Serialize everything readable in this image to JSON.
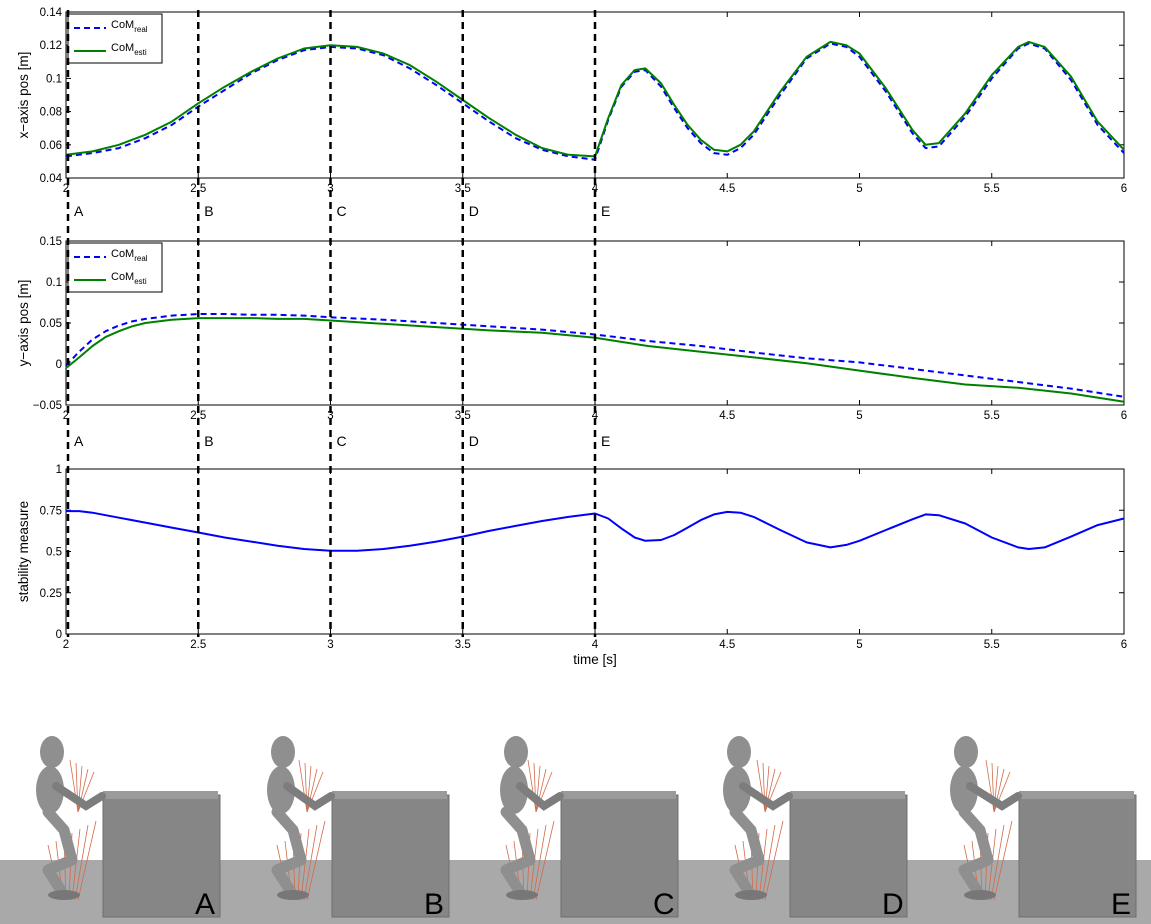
{
  "chart_data": [
    {
      "type": "line",
      "ylabel": "x−axis pos [m]",
      "xlabel": "",
      "xlim": [
        2,
        6
      ],
      "ylim": [
        0.04,
        0.14
      ],
      "xticks": [
        "2",
        "2.5",
        "3",
        "3.5",
        "4",
        "4.5",
        "5",
        "5.5",
        "6"
      ],
      "yticks": [
        "0.04",
        "0.06",
        "0.08",
        "0.1",
        "0.12",
        "0.14"
      ],
      "legend_position": "top-left",
      "series": [
        {
          "name": "CoM",
          "subscript": "real",
          "color": "#0000ff",
          "style": "dashed",
          "x": [
            2.0,
            2.1,
            2.2,
            2.3,
            2.4,
            2.5,
            2.6,
            2.7,
            2.8,
            2.9,
            3.0,
            3.1,
            3.2,
            3.3,
            3.4,
            3.5,
            3.6,
            3.7,
            3.8,
            3.9,
            4.0,
            4.05,
            4.1,
            4.15,
            4.19,
            4.25,
            4.3,
            4.35,
            4.4,
            4.45,
            4.5,
            4.55,
            4.6,
            4.7,
            4.8,
            4.89,
            4.95,
            5.0,
            5.1,
            5.2,
            5.25,
            5.3,
            5.4,
            5.5,
            5.6,
            5.64,
            5.7,
            5.8,
            5.9,
            6.0
          ],
          "y": [
            0.053,
            0.055,
            0.058,
            0.064,
            0.072,
            0.083,
            0.093,
            0.103,
            0.111,
            0.117,
            0.119,
            0.118,
            0.114,
            0.106,
            0.096,
            0.085,
            0.074,
            0.064,
            0.057,
            0.053,
            0.051,
            0.075,
            0.095,
            0.104,
            0.105,
            0.095,
            0.082,
            0.07,
            0.061,
            0.055,
            0.054,
            0.058,
            0.066,
            0.09,
            0.112,
            0.121,
            0.119,
            0.113,
            0.092,
            0.067,
            0.058,
            0.059,
            0.077,
            0.1,
            0.118,
            0.121,
            0.118,
            0.099,
            0.072,
            0.055
          ]
        },
        {
          "name": "CoM",
          "subscript": "esti",
          "color": "#008000",
          "style": "solid",
          "x": [
            2.0,
            2.1,
            2.2,
            2.3,
            2.4,
            2.5,
            2.6,
            2.7,
            2.8,
            2.9,
            3.0,
            3.1,
            3.2,
            3.3,
            3.4,
            3.5,
            3.6,
            3.7,
            3.8,
            3.9,
            4.0,
            4.05,
            4.1,
            4.15,
            4.19,
            4.25,
            4.3,
            4.35,
            4.4,
            4.45,
            4.5,
            4.55,
            4.6,
            4.7,
            4.8,
            4.89,
            4.95,
            5.0,
            5.1,
            5.2,
            5.25,
            5.3,
            5.4,
            5.5,
            5.6,
            5.64,
            5.7,
            5.8,
            5.9,
            6.0
          ],
          "y": [
            0.054,
            0.056,
            0.06,
            0.066,
            0.074,
            0.085,
            0.095,
            0.104,
            0.112,
            0.118,
            0.12,
            0.119,
            0.115,
            0.108,
            0.098,
            0.087,
            0.076,
            0.066,
            0.058,
            0.054,
            0.053,
            0.076,
            0.096,
            0.105,
            0.106,
            0.097,
            0.084,
            0.072,
            0.063,
            0.057,
            0.056,
            0.06,
            0.068,
            0.092,
            0.113,
            0.122,
            0.12,
            0.115,
            0.094,
            0.069,
            0.06,
            0.061,
            0.079,
            0.102,
            0.119,
            0.122,
            0.119,
            0.101,
            0.074,
            0.057
          ]
        }
      ]
    },
    {
      "type": "line",
      "ylabel": "y−axis pos [m]",
      "xlabel": "",
      "xlim": [
        2,
        6
      ],
      "ylim": [
        -0.05,
        0.15
      ],
      "xticks": [
        "2",
        "2.5",
        "3",
        "3.5",
        "4",
        "4.5",
        "5",
        "5.5",
        "6"
      ],
      "yticks": [
        "−0.05",
        "0",
        "0.05",
        "0.1",
        "0.15"
      ],
      "legend_position": "top-left",
      "series": [
        {
          "name": "CoM",
          "subscript": "real",
          "color": "#0000ff",
          "style": "dashed",
          "x": [
            2.0,
            2.05,
            2.1,
            2.15,
            2.2,
            2.25,
            2.3,
            2.4,
            2.5,
            2.6,
            2.7,
            2.8,
            2.9,
            3.0,
            3.2,
            3.4,
            3.6,
            3.8,
            4.0,
            4.2,
            4.4,
            4.6,
            4.8,
            5.0,
            5.2,
            5.4,
            5.6,
            5.8,
            6.0
          ],
          "y": [
            -0.002,
            0.015,
            0.03,
            0.04,
            0.047,
            0.052,
            0.055,
            0.059,
            0.061,
            0.061,
            0.06,
            0.06,
            0.059,
            0.057,
            0.054,
            0.05,
            0.046,
            0.042,
            0.036,
            0.028,
            0.022,
            0.014,
            0.007,
            0.002,
            -0.006,
            -0.014,
            -0.022,
            -0.03,
            -0.04
          ]
        },
        {
          "name": "CoM",
          "subscript": "esti",
          "color": "#008000",
          "style": "solid",
          "x": [
            2.0,
            2.05,
            2.1,
            2.15,
            2.2,
            2.25,
            2.3,
            2.4,
            2.5,
            2.6,
            2.7,
            2.8,
            2.9,
            3.0,
            3.2,
            3.4,
            3.6,
            3.8,
            4.0,
            4.2,
            4.4,
            4.6,
            4.8,
            5.0,
            5.2,
            5.4,
            5.6,
            5.8,
            6.0
          ],
          "y": [
            -0.005,
            0.008,
            0.022,
            0.033,
            0.04,
            0.046,
            0.05,
            0.054,
            0.056,
            0.056,
            0.056,
            0.055,
            0.055,
            0.053,
            0.049,
            0.045,
            0.041,
            0.038,
            0.032,
            0.022,
            0.015,
            0.008,
            0.001,
            -0.008,
            -0.017,
            -0.025,
            -0.029,
            -0.036,
            -0.046
          ]
        }
      ]
    },
    {
      "type": "line",
      "ylabel": "stability measure",
      "xlabel": "time [s]",
      "xlim": [
        2,
        6
      ],
      "ylim": [
        0,
        1
      ],
      "xticks": [
        "2",
        "2.5",
        "3",
        "3.5",
        "4",
        "4.5",
        "5",
        "5.5",
        "6"
      ],
      "yticks": [
        "0",
        "0.25",
        "0.5",
        "0.75",
        "1"
      ],
      "series": [
        {
          "name": "",
          "color": "#0000ff",
          "style": "solid",
          "x": [
            2.0,
            2.05,
            2.1,
            2.2,
            2.3,
            2.4,
            2.5,
            2.6,
            2.7,
            2.8,
            2.9,
            3.0,
            3.1,
            3.2,
            3.3,
            3.4,
            3.5,
            3.6,
            3.7,
            3.8,
            3.9,
            4.0,
            4.05,
            4.1,
            4.15,
            4.19,
            4.25,
            4.3,
            4.35,
            4.4,
            4.45,
            4.5,
            4.55,
            4.6,
            4.7,
            4.8,
            4.89,
            4.95,
            5.0,
            5.1,
            5.2,
            5.25,
            5.3,
            5.4,
            5.5,
            5.6,
            5.64,
            5.7,
            5.8,
            5.9,
            6.0
          ],
          "y": [
            0.745,
            0.745,
            0.735,
            0.705,
            0.675,
            0.645,
            0.615,
            0.585,
            0.56,
            0.535,
            0.515,
            0.505,
            0.505,
            0.515,
            0.535,
            0.56,
            0.59,
            0.625,
            0.655,
            0.685,
            0.71,
            0.73,
            0.7,
            0.64,
            0.585,
            0.565,
            0.57,
            0.6,
            0.645,
            0.69,
            0.725,
            0.74,
            0.735,
            0.71,
            0.63,
            0.555,
            0.525,
            0.54,
            0.565,
            0.63,
            0.695,
            0.725,
            0.72,
            0.67,
            0.585,
            0.525,
            0.515,
            0.525,
            0.59,
            0.66,
            0.7
          ]
        }
      ]
    }
  ],
  "phase_lines": {
    "times": [
      2.0,
      2.5,
      3.0,
      3.5,
      4.0
    ],
    "labels": [
      "A",
      "B",
      "C",
      "D",
      "E"
    ]
  },
  "snapshots": {
    "labels": [
      "A",
      "B",
      "C",
      "D",
      "E"
    ]
  },
  "colors": {
    "real": "#0000ff",
    "esti": "#008000",
    "stability": "#0000ff",
    "phase_line": "#000000",
    "ground": "#a9a9a9",
    "box": "#868686",
    "robot": "#8f8f8f",
    "force": "#d36a4a"
  }
}
